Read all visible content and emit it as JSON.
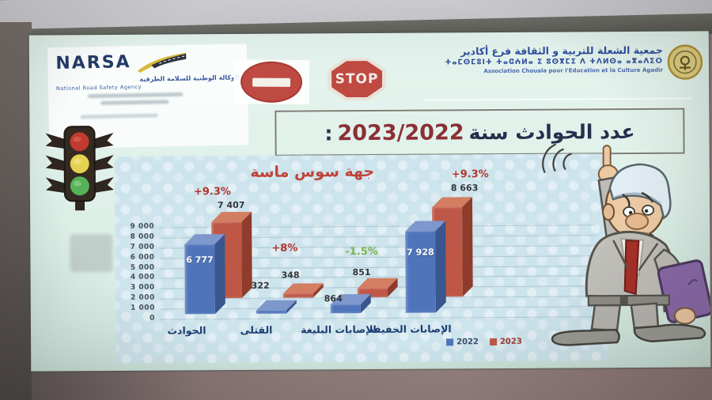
{
  "slide": {
    "narsa": {
      "brand": "NARSA",
      "line1": "الوكالة الوطنية للسلامة الطرقية",
      "line2": "National Road Safety Agency"
    },
    "signs": {
      "stop": "STOP"
    },
    "association": {
      "arabic": "جمعية الشعلة للتربية و الثقافة فرع أكادير",
      "tifinagh": "ⵜⴰⵎⵙⵎⵓⵏⵜ ⵜⴰⵛⵄⵍⴰ ⵉ ⵓⵙⴳⵎⵉ ⴷ ⵜⴷⵍⵙⴰ ⴰⴳⴰⴷⵉⵔ",
      "french": "Association Chouala pour l'Education et la Culture Agadir"
    },
    "title": {
      "text": "عدد الحوادث سنة",
      "years": "2023/2022",
      "suffix": ":"
    }
  },
  "chart_data": {
    "type": "bar",
    "title": "جهة سوس ماسة",
    "categories": [
      "الحوادث",
      "القتلى",
      "الإصابات البليغة",
      "الإصابات الخفيفة"
    ],
    "series": [
      {
        "name": "2022",
        "color": "#4f74ba",
        "legend_text": "#3d4e6d",
        "values": [
          6777,
          322,
          864,
          7928
        ],
        "labels": [
          "6 777",
          "322",
          "864",
          "7 928"
        ]
      },
      {
        "name": "2023",
        "color": "#bf5746",
        "legend_text": "#9c392e",
        "values": [
          7407,
          348,
          851,
          8663
        ],
        "labels": [
          "7 407",
          "348",
          "851",
          "8 663"
        ]
      }
    ],
    "changes": [
      {
        "text": "+9.3%",
        "color": "#b2342e"
      },
      {
        "text": "+8%",
        "color": "#b2342e"
      },
      {
        "text": "-1.5%",
        "color": "#79b34c"
      },
      {
        "text": "+9.3%",
        "color": "#b2342e"
      }
    ],
    "y_ticks": [
      "9 000",
      "8 000",
      "7 000",
      "6 000",
      "5 000",
      "4 000",
      "3 000",
      "2 000",
      "1 000",
      "0"
    ],
    "ylim": [
      0,
      9000
    ],
    "grid": true,
    "legend_position": "bottom-right"
  }
}
